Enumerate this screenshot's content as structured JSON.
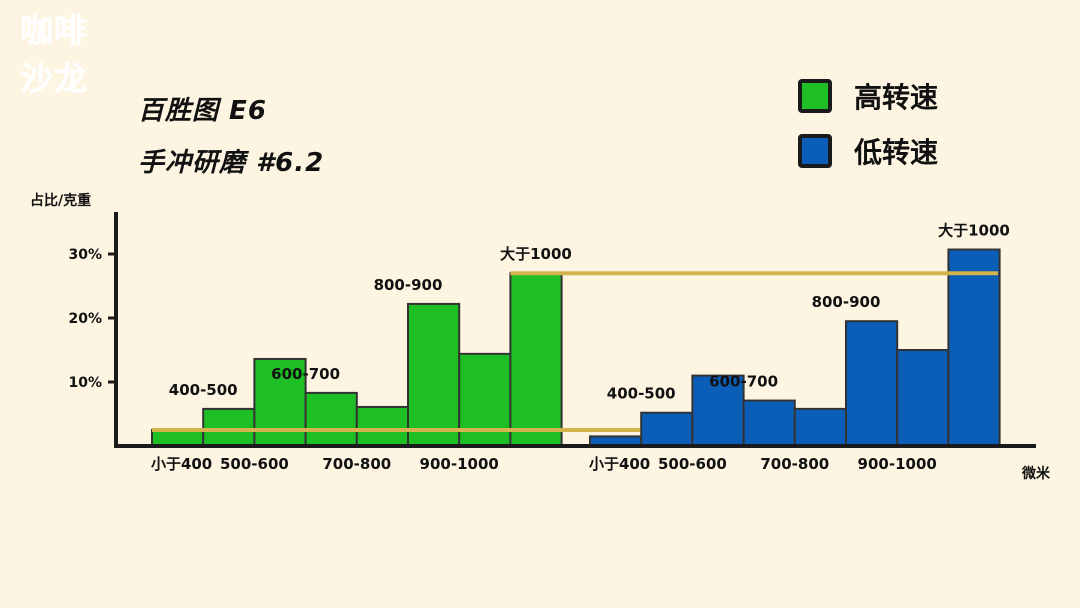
{
  "logo": {
    "line1": "咖啡",
    "line2": "沙龙"
  },
  "titles": {
    "line1": "百胜图 E6",
    "line2": "手冲研磨 #6.2"
  },
  "legend": [
    {
      "label": "高转速",
      "color": "#1ebf24"
    },
    {
      "label": "低转速",
      "color": "#0a5eb8"
    }
  ],
  "colors": {
    "refline": "#d4b24c",
    "axis": "#1a1a1a",
    "bar_border": "#333333"
  },
  "chart_data": {
    "type": "bar",
    "ylabel": "占比/克重",
    "xlabel": "微米",
    "ylim": [
      0,
      35
    ],
    "yticks": [
      {
        "value": 10,
        "label": "10%"
      },
      {
        "value": 20,
        "label": "20%"
      },
      {
        "value": 30,
        "label": "30%"
      }
    ],
    "groups": [
      {
        "series": "高转速",
        "color": "#1ebf24",
        "values": [
          2.5,
          5.8,
          13.6,
          8.3,
          6.1,
          22.2,
          14.4,
          27.0
        ],
        "category_labels": [
          "小于400",
          "500-600",
          "700-800",
          "900-1000"
        ],
        "annotations": [
          "400-500",
          "600-700",
          "800-900",
          "大于1000"
        ],
        "refline": {
          "from_value": 2.5,
          "to_value": 27.0
        }
      },
      {
        "series": "低转速",
        "color": "#0a5eb8",
        "values": [
          1.5,
          5.2,
          11.0,
          7.1,
          5.8,
          19.5,
          15.0,
          30.7
        ],
        "category_labels": [
          "小于400",
          "500-600",
          "700-800",
          "900-1000"
        ],
        "annotations": [
          "400-500",
          "600-700",
          "800-900",
          "大于1000"
        ]
      }
    ]
  }
}
